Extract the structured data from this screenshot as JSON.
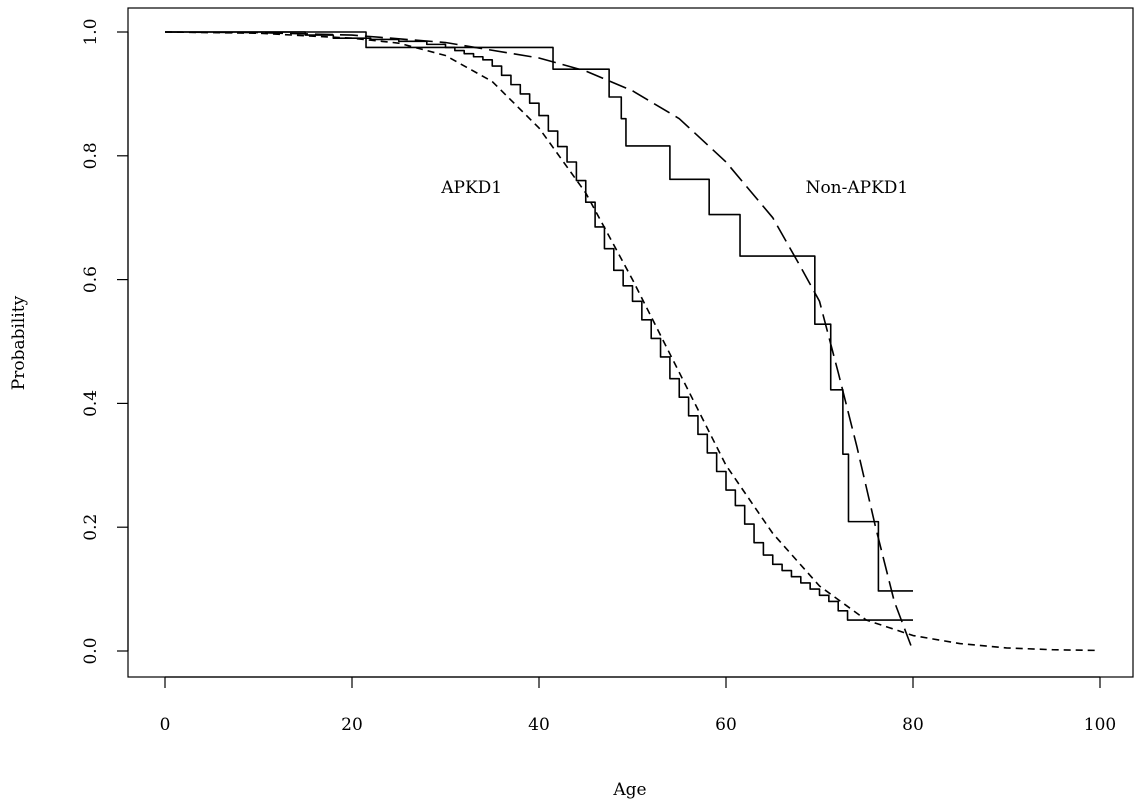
{
  "chart_data": {
    "type": "line",
    "title": "",
    "xlabel": "Age",
    "ylabel": "Probability",
    "xlim": [
      0,
      100
    ],
    "ylim": [
      0,
      1
    ],
    "xticks": [
      0,
      20,
      40,
      60,
      80,
      100
    ],
    "yticks": [
      0.0,
      0.2,
      0.4,
      0.6,
      0.8,
      1.0
    ],
    "xtick_labels": [
      "0",
      "20",
      "40",
      "60",
      "80",
      "100"
    ],
    "ytick_labels": [
      "0.0",
      "0.2",
      "0.4",
      "0.6",
      "0.8",
      "1.0"
    ],
    "grid": false,
    "annotations": [
      {
        "text": "APKD1",
        "x": 32.8,
        "y": 0.75
      },
      {
        "text": "Non-APKD1",
        "x": 74.0,
        "y": 0.75
      }
    ],
    "series": [
      {
        "style": "step",
        "points": [
          [
            0,
            1.0
          ],
          [
            15,
            0.995
          ],
          [
            18,
            0.99
          ],
          [
            22,
            0.988
          ],
          [
            25,
            0.985
          ],
          [
            28,
            0.98
          ],
          [
            30,
            0.975
          ],
          [
            31,
            0.97
          ],
          [
            32,
            0.965
          ],
          [
            33,
            0.96
          ],
          [
            34,
            0.955
          ],
          [
            35,
            0.945
          ],
          [
            36,
            0.93
          ],
          [
            37,
            0.915
          ],
          [
            38,
            0.9
          ],
          [
            39,
            0.885
          ],
          [
            40,
            0.865
          ],
          [
            41,
            0.84
          ],
          [
            42,
            0.815
          ],
          [
            43,
            0.79
          ],
          [
            44,
            0.76
          ],
          [
            45,
            0.725
          ],
          [
            46,
            0.685
          ],
          [
            47,
            0.65
          ],
          [
            48,
            0.615
          ],
          [
            49,
            0.59
          ],
          [
            50,
            0.565
          ],
          [
            51,
            0.535
          ],
          [
            52,
            0.505
          ],
          [
            53,
            0.475
          ],
          [
            54,
            0.44
          ],
          [
            55,
            0.41
          ],
          [
            56,
            0.38
          ],
          [
            57,
            0.35
          ],
          [
            58,
            0.32
          ],
          [
            59,
            0.29
          ],
          [
            60,
            0.26
          ],
          [
            61,
            0.235
          ],
          [
            62,
            0.205
          ],
          [
            63,
            0.175
          ],
          [
            64,
            0.155
          ],
          [
            65,
            0.14
          ],
          [
            66,
            0.13
          ],
          [
            67,
            0.12
          ],
          [
            68,
            0.11
          ],
          [
            69,
            0.1
          ],
          [
            70,
            0.09
          ],
          [
            71,
            0.08
          ],
          [
            72,
            0.065
          ],
          [
            73,
            0.05
          ],
          [
            80,
            0.05
          ]
        ]
      },
      {
        "style": "step",
        "points": [
          [
            0,
            1.0
          ],
          [
            21.5,
            1.0
          ],
          [
            21.5,
            0.975
          ],
          [
            41.5,
            0.975
          ],
          [
            41.5,
            0.94
          ],
          [
            47.5,
            0.94
          ],
          [
            47.5,
            0.895
          ],
          [
            48.8,
            0.895
          ],
          [
            48.8,
            0.86
          ],
          [
            49.3,
            0.86
          ],
          [
            49.3,
            0.816
          ],
          [
            54.0,
            0.816
          ],
          [
            54.0,
            0.762
          ],
          [
            58.2,
            0.762
          ],
          [
            58.2,
            0.705
          ],
          [
            61.5,
            0.705
          ],
          [
            61.5,
            0.638
          ],
          [
            69.5,
            0.638
          ],
          [
            69.5,
            0.528
          ],
          [
            71.2,
            0.528
          ],
          [
            71.2,
            0.422
          ],
          [
            72.5,
            0.422
          ],
          [
            72.5,
            0.318
          ],
          [
            73.1,
            0.318
          ],
          [
            73.1,
            0.209
          ],
          [
            76.3,
            0.209
          ],
          [
            76.3,
            0.097
          ],
          [
            80,
            0.097
          ]
        ]
      },
      {
        "style": "dashed-fit",
        "points": [
          [
            0,
            1.0
          ],
          [
            10,
            0.998
          ],
          [
            20,
            0.99
          ],
          [
            25,
            0.982
          ],
          [
            30,
            0.962
          ],
          [
            35,
            0.92
          ],
          [
            40,
            0.845
          ],
          [
            45,
            0.74
          ],
          [
            50,
            0.6
          ],
          [
            55,
            0.45
          ],
          [
            60,
            0.3
          ],
          [
            65,
            0.19
          ],
          [
            70,
            0.105
          ],
          [
            75,
            0.05
          ],
          [
            80,
            0.025
          ],
          [
            85,
            0.012
          ],
          [
            90,
            0.005
          ],
          [
            95,
            0.002
          ],
          [
            99.5,
            0.001
          ]
        ]
      },
      {
        "style": "longdash-fit",
        "points": [
          [
            0,
            1.0
          ],
          [
            10,
            0.999
          ],
          [
            20,
            0.995
          ],
          [
            30,
            0.983
          ],
          [
            40,
            0.958
          ],
          [
            45,
            0.937
          ],
          [
            50,
            0.905
          ],
          [
            55,
            0.86
          ],
          [
            60,
            0.79
          ],
          [
            65,
            0.7
          ],
          [
            68,
            0.62
          ],
          [
            70,
            0.565
          ],
          [
            72,
            0.45
          ],
          [
            74,
            0.33
          ],
          [
            76,
            0.2
          ],
          [
            78,
            0.08
          ],
          [
            80,
            0.0
          ]
        ]
      }
    ]
  }
}
